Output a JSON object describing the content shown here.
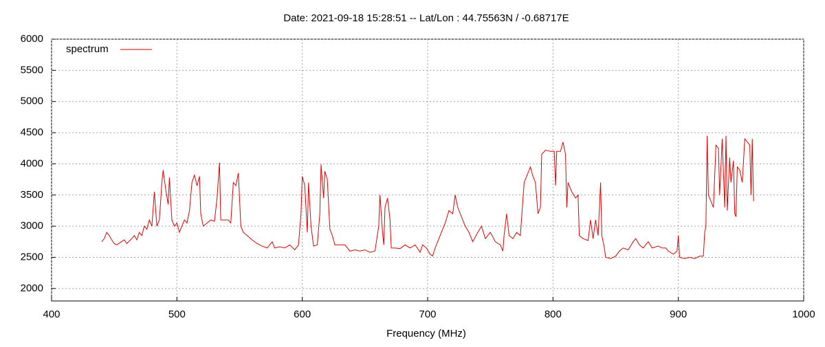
{
  "chart_data": {
    "type": "line",
    "title": "Date: 2021-09-18 15:28:51  --  Lat/Lon : 44.75563N / -0.68717E",
    "x_label": "Frequency (MHz)",
    "xlim": [
      400,
      1000
    ],
    "xticks": [
      400,
      500,
      600,
      700,
      800,
      900,
      1000
    ],
    "ylim": [
      1800,
      6000
    ],
    "yticks": [
      2000,
      2500,
      3000,
      3500,
      4000,
      4500,
      5000,
      5500,
      6000
    ],
    "grid": true,
    "legend": "top-left",
    "series": [
      {
        "name": "spectrum",
        "color": "#e00000",
        "x": [
          440,
          442,
          444,
          446,
          448,
          450,
          452,
          455,
          458,
          460,
          462,
          464,
          466,
          468,
          470,
          472,
          474,
          476,
          478,
          480,
          482,
          484,
          486,
          488,
          489,
          491,
          493,
          494,
          496,
          498,
          500,
          502,
          504,
          506,
          508,
          510,
          512,
          514,
          516,
          518,
          519,
          521,
          524,
          527,
          530,
          532,
          534,
          535,
          538,
          541,
          543,
          545,
          547,
          549,
          551,
          553,
          556,
          560,
          564,
          568,
          572,
          576,
          578,
          582,
          586,
          590,
          594,
          597,
          599,
          600,
          602,
          604,
          605,
          607,
          609,
          612,
          614,
          615,
          617,
          618,
          620,
          622,
          624,
          626,
          630,
          634,
          638,
          642,
          646,
          650,
          654,
          658,
          661,
          662,
          664,
          665,
          666,
          668,
          670,
          671,
          674,
          678,
          682,
          686,
          690,
          694,
          696,
          699,
          702,
          704,
          706,
          710,
          714,
          717,
          720,
          722,
          724,
          727,
          730,
          733,
          736,
          740,
          743,
          746,
          750,
          754,
          758,
          760,
          761,
          763,
          765,
          768,
          771,
          774,
          777,
          780,
          782,
          784,
          786,
          788,
          790,
          791,
          794,
          798,
          801,
          802,
          803,
          806,
          808,
          810,
          811,
          812,
          815,
          818,
          820,
          821,
          824,
          828,
          830,
          832,
          834,
          836,
          838,
          839,
          841,
          842,
          846,
          850,
          853,
          856,
          860,
          864,
          866,
          869,
          872,
          876,
          879,
          884,
          887,
          890,
          892,
          896,
          899,
          900,
          901,
          905,
          909,
          913,
          917,
          920,
          921,
          922,
          923,
          924,
          926,
          928,
          930,
          932,
          933,
          935,
          937,
          938,
          939,
          941,
          942,
          944,
          945,
          946,
          947,
          949,
          951,
          953,
          955,
          957,
          958,
          959,
          960
        ],
        "values": [
          2750,
          2800,
          2900,
          2850,
          2780,
          2720,
          2700,
          2740,
          2780,
          2720,
          2760,
          2800,
          2850,
          2780,
          2900,
          2850,
          3000,
          2950,
          3100,
          3000,
          3550,
          3000,
          3100,
          3700,
          3900,
          3600,
          3350,
          3780,
          3100,
          3000,
          3050,
          2900,
          3000,
          3100,
          3050,
          3250,
          3700,
          3820,
          3650,
          3800,
          3200,
          3000,
          3050,
          3100,
          3080,
          3450,
          4020,
          3100,
          3100,
          3100,
          3050,
          3700,
          3650,
          3850,
          3000,
          2900,
          2850,
          2780,
          2720,
          2680,
          2650,
          2750,
          2650,
          2670,
          2650,
          2700,
          2620,
          2700,
          3200,
          3800,
          3650,
          2900,
          3700,
          3000,
          2680,
          2700,
          3200,
          3990,
          3450,
          3880,
          3750,
          2950,
          2850,
          2700,
          2700,
          2700,
          2600,
          2620,
          2600,
          2620,
          2580,
          2600,
          3000,
          3500,
          2900,
          2700,
          3300,
          3450,
          3100,
          2650,
          2650,
          2640,
          2700,
          2650,
          2700,
          2580,
          2700,
          2650,
          2550,
          2520,
          2650,
          2850,
          3050,
          3250,
          3200,
          3500,
          3300,
          3150,
          3000,
          2900,
          2750,
          2900,
          3000,
          2800,
          2900,
          2750,
          2700,
          2600,
          2850,
          3200,
          2850,
          2800,
          2900,
          2850,
          3700,
          3850,
          3950,
          3800,
          3700,
          3200,
          3300,
          4150,
          4220,
          4200,
          4200,
          3650,
          4200,
          4200,
          4350,
          4150,
          3300,
          3700,
          3550,
          3450,
          3500,
          2850,
          2800,
          2770,
          3100,
          2800,
          3100,
          2850,
          3700,
          2850,
          2650,
          2500,
          2480,
          2520,
          2600,
          2650,
          2620,
          2750,
          2800,
          2700,
          2650,
          2750,
          2650,
          2680,
          2650,
          2650,
          2600,
          2550,
          2600,
          2850,
          2500,
          2480,
          2500,
          2480,
          2520,
          2520,
          2900,
          3000,
          4450,
          3500,
          3400,
          3300,
          4300,
          4250,
          3500,
          4400,
          3300,
          4450,
          3250,
          4100,
          3700,
          4050,
          3200,
          3150,
          3950,
          3900,
          3700,
          4400,
          4350,
          4300,
          3500,
          4400,
          3400
        ]
      }
    ]
  }
}
